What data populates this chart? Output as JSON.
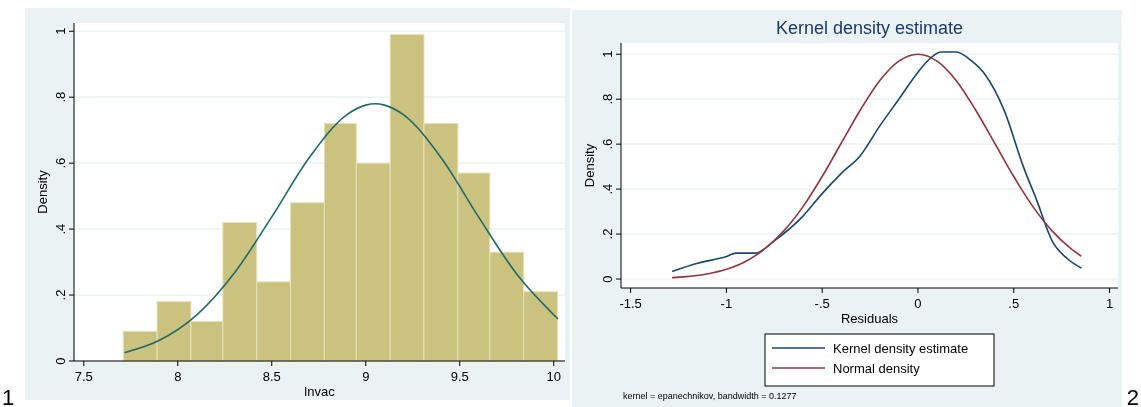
{
  "chart_data": [
    {
      "type": "histogram",
      "xlabel": "lnvac",
      "ylabel": "Density",
      "xlim": [
        7.448,
        10.06
      ],
      "ylim": [
        0,
        1.025
      ],
      "xticks": [
        7.5,
        8,
        8.5,
        9,
        9.5,
        10
      ],
      "yticks": [
        {
          "value": 0,
          "label": "0"
        },
        {
          "value": 0.2,
          "label": ".2"
        },
        {
          "value": 0.4,
          "label": ".4"
        },
        {
          "value": 0.6,
          "label": ".6"
        },
        {
          "value": 0.8,
          "label": ".8"
        },
        1
      ],
      "grid": "y",
      "legend": false,
      "series": [
        {
          "type": "histogram",
          "color": "#cbc280",
          "bins": [
            7.71,
            7.89,
            8.07,
            8.24,
            8.42,
            8.6,
            8.78,
            8.95,
            9.13,
            9.31,
            9.49,
            9.66,
            9.84,
            10.02
          ],
          "values": [
            0.09,
            0.18,
            0.12,
            0.42,
            0.24,
            0.48,
            0.72,
            0.6,
            0.99,
            0.72,
            0.57,
            0.33,
            0.21
          ]
        },
        {
          "type": "line",
          "color": "#1f6b69",
          "x": [
            7.72,
            7.9,
            8.1,
            8.3,
            8.5,
            8.7,
            8.9,
            9.0,
            9.05,
            9.1,
            9.2,
            9.4,
            9.6,
            9.8,
            10.02
          ],
          "values": [
            0.026,
            0.062,
            0.139,
            0.266,
            0.437,
            0.617,
            0.747,
            0.776,
            0.78,
            0.776,
            0.747,
            0.617,
            0.437,
            0.266,
            0.129
          ]
        }
      ],
      "annotations": [
        "1"
      ]
    },
    {
      "type": "line",
      "title": "Kernel density estimate",
      "xlabel": "Residuals",
      "ylabel": "Density",
      "xlim": [
        -1.55,
        1.044
      ],
      "ylim": [
        -0.04,
        1.05
      ],
      "xticks": [
        {
          "value": -1.5,
          "label": "-1.5"
        },
        {
          "value": -1,
          "label": "-1"
        },
        {
          "value": -0.5,
          "label": "-.5"
        },
        {
          "value": 0,
          "label": "0"
        },
        {
          "value": 0.5,
          "label": ".5"
        },
        1
      ],
      "yticks": [
        {
          "value": 0,
          "label": "0"
        },
        {
          "value": 0.2,
          "label": ".2"
        },
        {
          "value": 0.4,
          "label": ".4"
        },
        {
          "value": 0.6,
          "label": ".6"
        },
        {
          "value": 0.8,
          "label": ".8"
        },
        1
      ],
      "grid": "y",
      "legend": "bottom",
      "series": [
        {
          "name": "Kernel density estimate",
          "color": "#1a476f",
          "x": [
            -1.28,
            -1.15,
            -1.0,
            -0.95,
            -0.85,
            -0.75,
            -0.6,
            -0.5,
            -0.4,
            -0.3,
            -0.2,
            -0.1,
            0,
            0.05,
            0.12,
            0.2,
            0.28,
            0.35,
            0.45,
            0.55,
            0.62,
            0.7,
            0.78,
            0.85
          ],
          "values": [
            0.035,
            0.07,
            0.1,
            0.115,
            0.115,
            0.17,
            0.28,
            0.38,
            0.47,
            0.55,
            0.68,
            0.8,
            0.92,
            0.97,
            1.01,
            1.01,
            0.97,
            0.91,
            0.75,
            0.5,
            0.35,
            0.17,
            0.09,
            0.05
          ]
        },
        {
          "name": "Normal density",
          "color": "#90353b",
          "x": [
            -1.28,
            -1.1,
            -1.0,
            -0.9,
            -0.8,
            -0.7,
            -0.6,
            -0.5,
            -0.4,
            -0.3,
            -0.2,
            -0.1,
            0,
            0.1,
            0.2,
            0.3,
            0.4,
            0.5,
            0.6,
            0.7,
            0.8,
            0.85
          ],
          "values": [
            0.006,
            0.022,
            0.043,
            0.078,
            0.134,
            0.214,
            0.322,
            0.456,
            0.605,
            0.753,
            0.882,
            0.969,
            1.0,
            0.969,
            0.882,
            0.753,
            0.605,
            0.456,
            0.322,
            0.214,
            0.134,
            0.103
          ]
        }
      ],
      "annotations": [
        "kernel = epanechnikov, bandwidth = 0.1277",
        "2"
      ]
    }
  ]
}
